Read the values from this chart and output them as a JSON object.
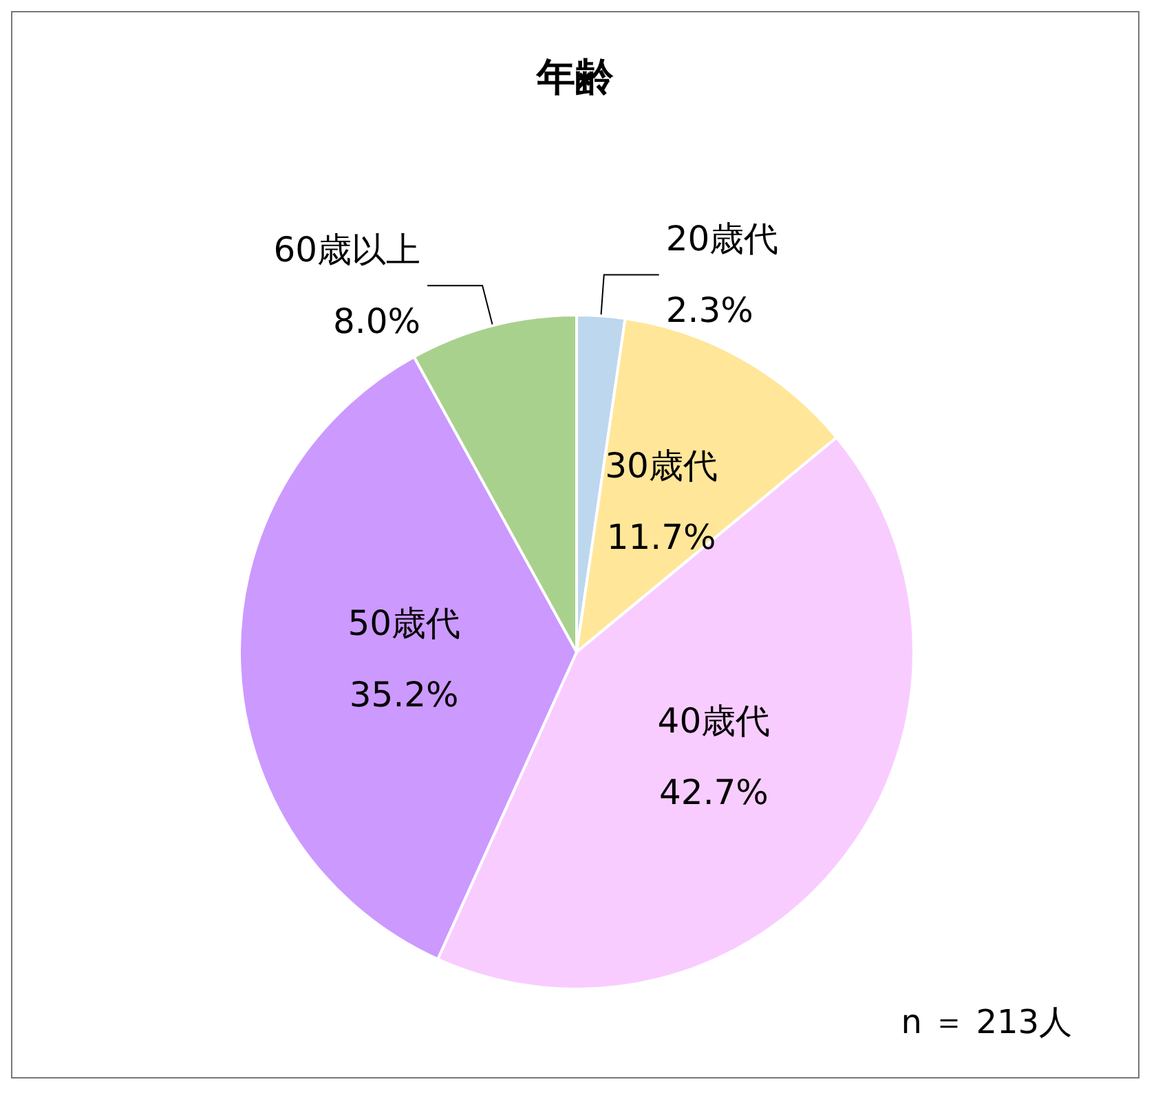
{
  "chart_data": {
    "type": "pie",
    "title": "年齢",
    "categories": [
      "20歳代",
      "30歳代",
      "40歳代",
      "50歳代",
      "60歳以上"
    ],
    "values": [
      2.3,
      11.7,
      42.7,
      35.2,
      8.0
    ],
    "value_labels": [
      "2.3%",
      "11.7%",
      "42.7%",
      "35.2%",
      "8.0%"
    ],
    "colors": [
      "#bdd7ee",
      "#ffe699",
      "#f9ccff",
      "#cc99ff",
      "#a9d18e"
    ],
    "annotations": [
      "n ＝ 213人"
    ],
    "legend": false
  }
}
